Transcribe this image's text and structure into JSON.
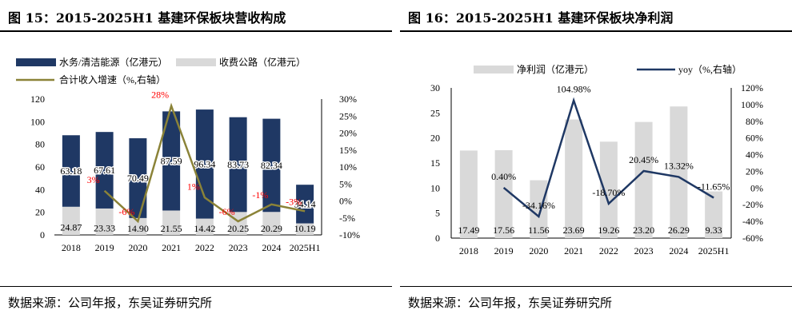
{
  "left": {
    "figure_title": "图 15：2015-2025H1 基建环保板块营收构成",
    "source": "数据来源：公司年报，东吴证券研究所",
    "chart_data": {
      "type": "bar",
      "stacked": true,
      "categories": [
        "2018",
        "2019",
        "2020",
        "2021",
        "2022",
        "2023",
        "2024",
        "2025H1"
      ],
      "series": [
        {
          "name": "收费公路（亿港元）",
          "kind": "bar",
          "color": "#d9d9d9",
          "values": [
            24.87,
            23.33,
            14.9,
            21.55,
            14.42,
            20.25,
            20.29,
            10.19
          ],
          "labels": [
            "24.87",
            "23.33",
            "14.90",
            "21.55",
            "14.42",
            "20.25",
            "20.29",
            "10.19"
          ]
        },
        {
          "name": "水务/清洁能源（亿港元）",
          "kind": "bar",
          "color": "#1f3864",
          "values": [
            63.18,
            67.61,
            70.49,
            87.59,
            96.34,
            83.73,
            82.34,
            34.14
          ],
          "labels": [
            "63.18",
            "67.61",
            "70.49",
            "87.59",
            "96.34",
            "83.73",
            "82.34",
            "34.14"
          ]
        },
        {
          "name": "合计收入增速（%,右轴）",
          "kind": "line",
          "color": "#8b8338",
          "values": [
            null,
            3,
            -6,
            28,
            1,
            -6,
            -1,
            -3
          ],
          "labels": [
            "",
            "3%",
            "-6%",
            "28%",
            "1%",
            "-6%",
            "-1%",
            "-3%"
          ]
        }
      ],
      "y_left": {
        "min": 0,
        "max": 120,
        "step": 20,
        "ticks": [
          "0",
          "20",
          "40",
          "60",
          "80",
          "100",
          "120"
        ]
      },
      "y_right": {
        "min": -10,
        "max": 30,
        "step": 5,
        "ticks": [
          "-10%",
          "-5%",
          "0%",
          "5%",
          "10%",
          "15%",
          "20%",
          "25%",
          "30%"
        ]
      },
      "legend_position": "top",
      "label_color": "#ff0000",
      "value_label_color": "#000000"
    }
  },
  "right": {
    "figure_title": "图 16：2015-2025H1 基建环保板块净利润",
    "source": "数据来源：公司年报，东吴证券研究所",
    "chart_data": {
      "type": "bar",
      "categories": [
        "2018",
        "2019",
        "2020",
        "2021",
        "2022",
        "2023",
        "2024",
        "2025H1"
      ],
      "series": [
        {
          "name": "净利润（亿港元）",
          "kind": "bar",
          "color": "#d9d9d9",
          "values": [
            17.49,
            17.56,
            11.56,
            23.69,
            19.26,
            23.2,
            26.29,
            9.33
          ],
          "labels": [
            "17.49",
            "17.56",
            "11.56",
            "23.69",
            "19.26",
            "23.20",
            "26.29",
            "9.33"
          ]
        },
        {
          "name": "yoy（%,右轴）",
          "kind": "line",
          "color": "#1f3864",
          "values": [
            null,
            0.4,
            -34.16,
            104.98,
            -18.7,
            20.45,
            13.32,
            -11.65
          ],
          "labels": [
            "",
            "0.40%",
            "-34.16%",
            "104.98%",
            "-18.70%",
            "20.45%",
            "13.32%",
            "-11.65%"
          ]
        }
      ],
      "y_left": {
        "min": 0,
        "max": 30,
        "step": 5,
        "ticks": [
          "0",
          "5",
          "10",
          "15",
          "20",
          "25",
          "30"
        ]
      },
      "y_right": {
        "min": -60,
        "max": 120,
        "step": 20,
        "ticks": [
          "-60%",
          "-40%",
          "-20%",
          "0%",
          "20%",
          "40%",
          "60%",
          "80%",
          "100%",
          "120%"
        ]
      },
      "legend_position": "top"
    }
  }
}
